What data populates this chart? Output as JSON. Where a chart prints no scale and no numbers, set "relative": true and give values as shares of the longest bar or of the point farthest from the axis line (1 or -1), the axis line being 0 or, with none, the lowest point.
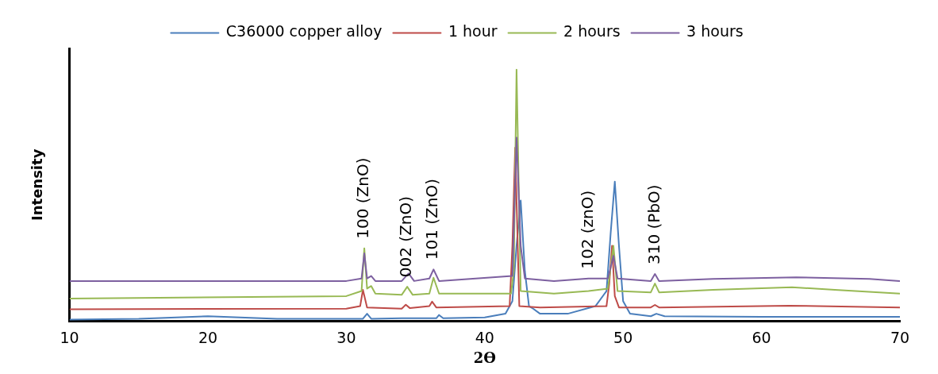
{
  "chart_data": {
    "type": "line",
    "relative": true,
    "xlabel": "2ϴ",
    "ylabel": "Intensity",
    "xlim": [
      10,
      70
    ],
    "xticks": [
      10,
      20,
      30,
      40,
      50,
      60,
      70
    ],
    "legend": "top",
    "grid": false,
    "marker": "none",
    "series": [
      {
        "name": "C36000 copper alloy",
        "color": "#4a7ebb",
        "x": [
          10,
          15,
          20,
          25,
          30,
          31.2,
          31.5,
          31.8,
          34,
          36.5,
          36.7,
          37,
          40,
          41.5,
          42,
          42.3,
          42.6,
          42.9,
          43.2,
          43.5,
          44,
          46,
          48,
          48.8,
          49.1,
          49.4,
          49.7,
          50,
          50.5,
          52,
          52.4,
          53,
          60,
          70
        ],
        "values": [
          0.007,
          0.01,
          0.02,
          0.01,
          0.01,
          0.01,
          0.03,
          0.01,
          0.012,
          0.012,
          0.025,
          0.012,
          0.015,
          0.03,
          0.08,
          0.3,
          0.48,
          0.2,
          0.06,
          0.05,
          0.03,
          0.03,
          0.06,
          0.12,
          0.35,
          0.555,
          0.3,
          0.08,
          0.03,
          0.02,
          0.03,
          0.02,
          0.018,
          0.018
        ]
      },
      {
        "name": "1 hour",
        "color": "#be4b48",
        "x": [
          10,
          30,
          31,
          31.2,
          31.5,
          34,
          34.3,
          34.6,
          36,
          36.2,
          36.5,
          41.8,
          42.0,
          42.2,
          42.5,
          44,
          48.8,
          49.0,
          49.2,
          49.4,
          49.7,
          52,
          52.3,
          52.6,
          62,
          70
        ],
        "values": [
          0.048,
          0.05,
          0.06,
          0.125,
          0.055,
          0.05,
          0.066,
          0.052,
          0.06,
          0.078,
          0.055,
          0.06,
          0.3,
          0.69,
          0.06,
          0.055,
          0.06,
          0.15,
          0.3,
          0.1,
          0.055,
          0.055,
          0.065,
          0.055,
          0.062,
          0.055
        ]
      },
      {
        "name": "2 hours",
        "color": "#98b954",
        "x": [
          10,
          30,
          31.1,
          31.3,
          31.5,
          31.8,
          32.1,
          34,
          34.4,
          34.8,
          36,
          36.3,
          36.7,
          40.5,
          41.9,
          42.1,
          42.3,
          42.6,
          45,
          47.5,
          48.9,
          49.3,
          49.6,
          52,
          52.3,
          52.6,
          56.5,
          62.2,
          65.3,
          70
        ],
        "values": [
          0.09,
          0.1,
          0.12,
          0.29,
          0.13,
          0.14,
          0.11,
          0.105,
          0.137,
          0.105,
          0.11,
          0.173,
          0.11,
          0.11,
          0.11,
          0.2,
          1.0,
          0.12,
          0.11,
          0.12,
          0.13,
          0.3,
          0.12,
          0.115,
          0.15,
          0.115,
          0.125,
          0.135,
          0.125,
          0.11
        ]
      },
      {
        "name": "3 hours",
        "color": "#7d60a0",
        "x": [
          10,
          30,
          31.1,
          31.3,
          31.5,
          31.8,
          32.1,
          34,
          34.5,
          34.9,
          36,
          36.3,
          36.7,
          42,
          42.3,
          42.6,
          42.9,
          45,
          47.5,
          48.9,
          49.3,
          49.6,
          52,
          52.3,
          52.6,
          56.5,
          62.5,
          67.8,
          70
        ],
        "values": [
          0.16,
          0.16,
          0.17,
          0.27,
          0.17,
          0.18,
          0.16,
          0.16,
          0.19,
          0.16,
          0.17,
          0.206,
          0.16,
          0.18,
          0.73,
          0.3,
          0.17,
          0.16,
          0.17,
          0.17,
          0.26,
          0.17,
          0.16,
          0.188,
          0.16,
          0.168,
          0.175,
          0.168,
          0.16
        ]
      }
    ],
    "annotations": [
      {
        "text": "100 (ZnO)",
        "x": 31.3,
        "y": 0.29
      },
      {
        "text": "002 (ZnO)",
        "x": 34.4,
        "y": 0.137
      },
      {
        "text": "101 (ZnO)",
        "x": 36.3,
        "y": 0.206
      },
      {
        "text": "102 (znO)",
        "x": 47.5,
        "y": 0.17
      },
      {
        "text": "310 (PbO)",
        "x": 52.3,
        "y": 0.188
      }
    ]
  }
}
